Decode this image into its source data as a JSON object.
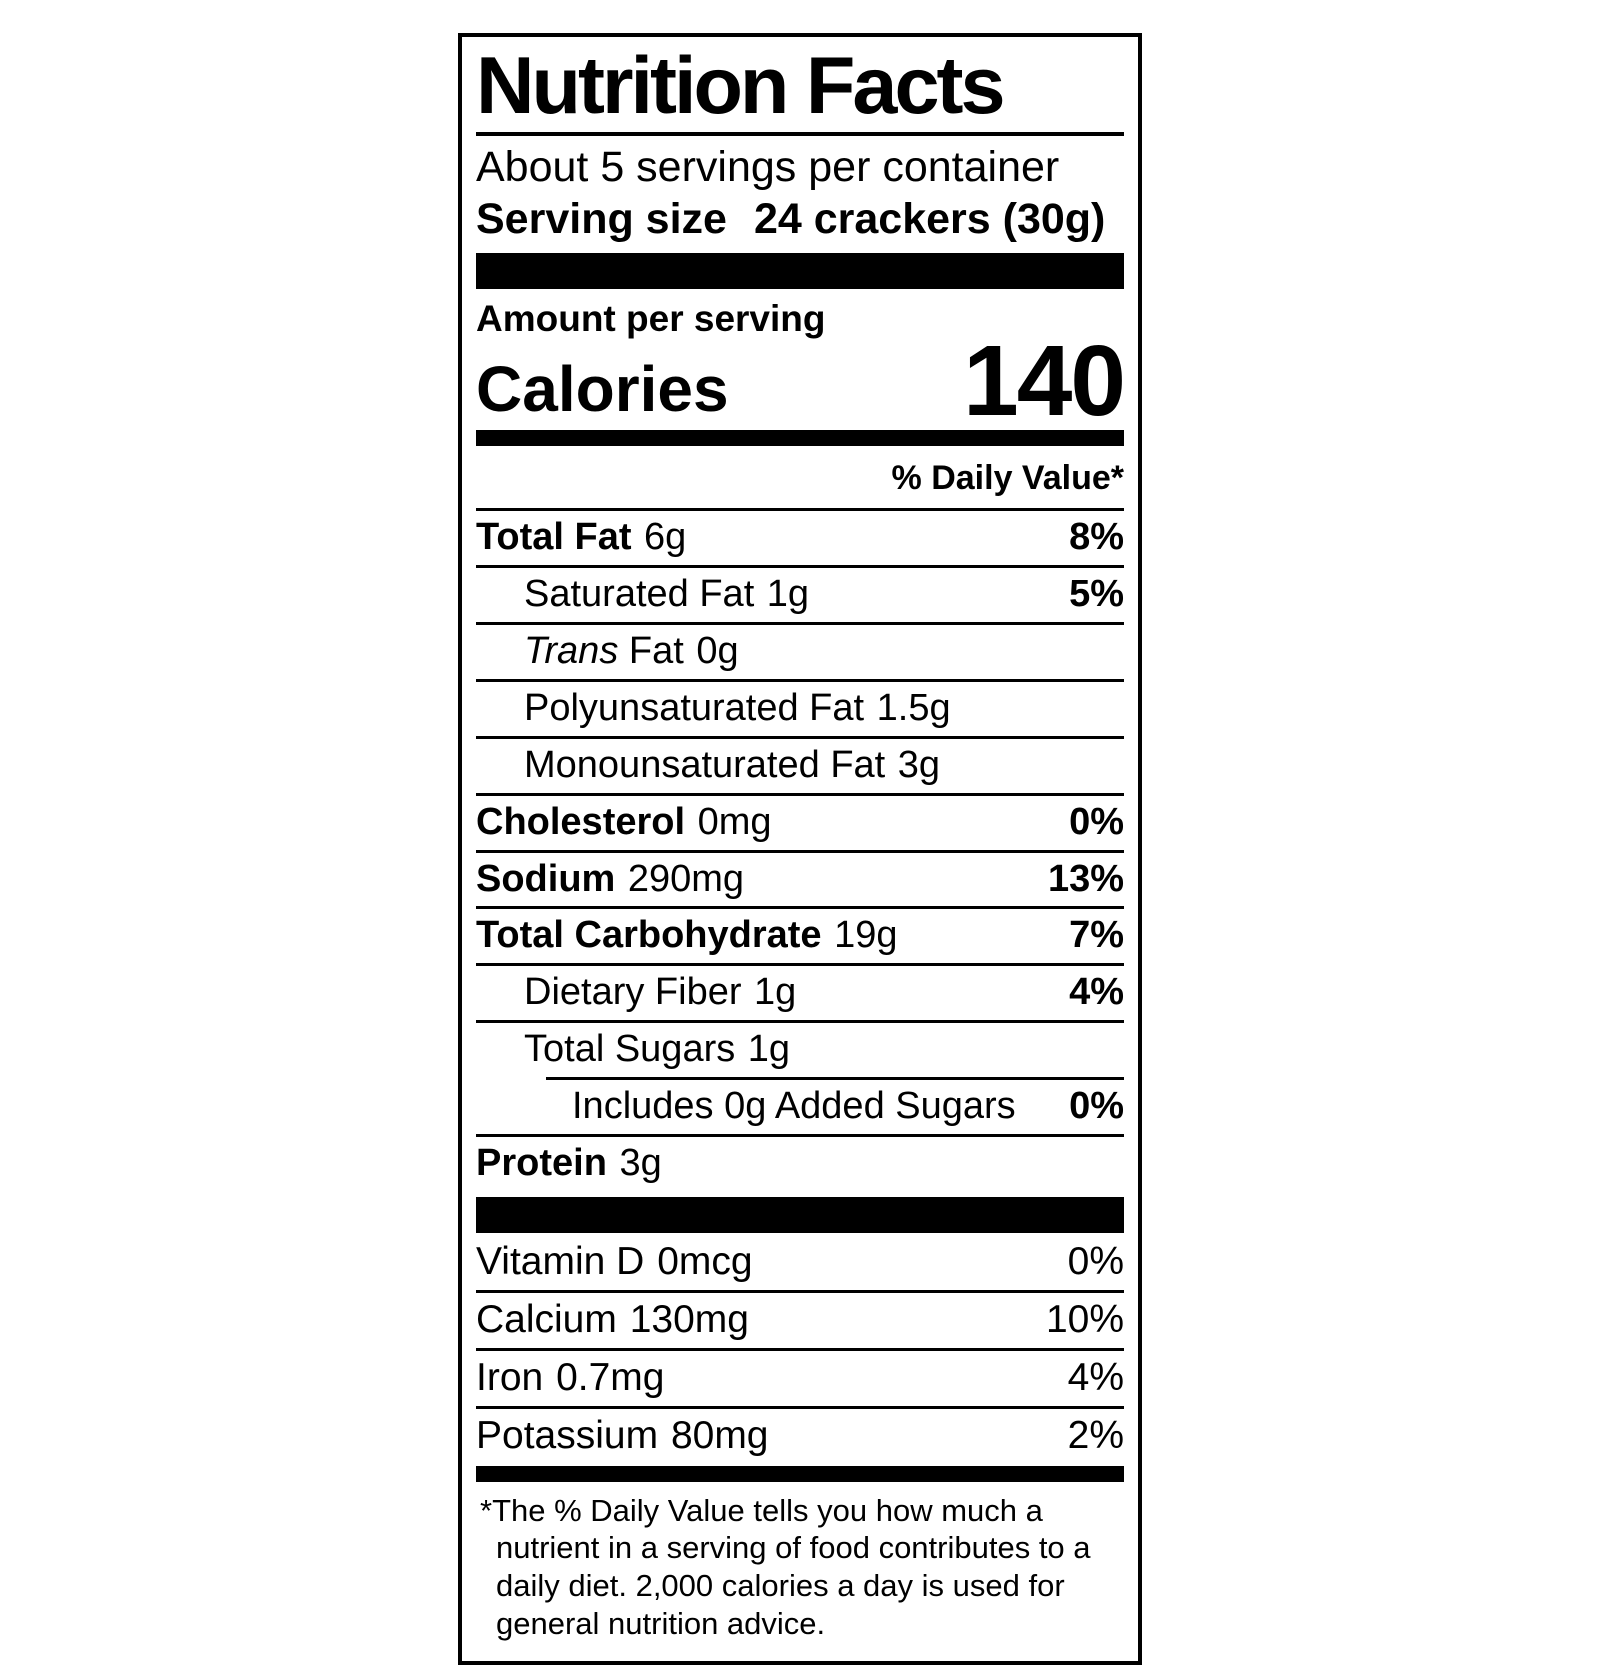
{
  "colors": {
    "ink": "#000000",
    "background": "#ffffff"
  },
  "label": {
    "title": "Nutrition Facts",
    "servings_per_container": "About 5 servings per container",
    "serving_size_label": "Serving size",
    "serving_size_value": "24 crackers (30g)",
    "amount_per_serving": "Amount per serving",
    "calories_label": "Calories",
    "calories_value": "140",
    "daily_value_header": "% Daily Value*",
    "nutrients": [
      {
        "name": "Total Fat",
        "amount": "6g",
        "dv": "8%"
      },
      {
        "name": "Saturated Fat",
        "amount": "1g",
        "dv": "5%"
      },
      {
        "name_italic": "Trans",
        "name": " Fat",
        "amount": "0g",
        "dv": ""
      },
      {
        "name": "Polyunsaturated Fat",
        "amount": "1.5g",
        "dv": ""
      },
      {
        "name": "Monounsaturated Fat",
        "amount": "3g",
        "dv": ""
      },
      {
        "name": "Cholesterol",
        "amount": "0mg",
        "dv": "0%"
      },
      {
        "name": "Sodium",
        "amount": "290mg",
        "dv": "13%"
      },
      {
        "name": "Total Carbohydrate",
        "amount": "19g",
        "dv": "7%"
      },
      {
        "name": "Dietary Fiber",
        "amount": "1g",
        "dv": "4%"
      },
      {
        "name": "Total Sugars",
        "amount": "1g",
        "dv": ""
      },
      {
        "name": "Includes 0g Added Sugars",
        "amount": "",
        "dv": "0%"
      },
      {
        "name": "Protein",
        "amount": "3g",
        "dv": ""
      }
    ],
    "micronutrients": [
      {
        "name": "Vitamin D",
        "amount": "0mcg",
        "dv": "0%"
      },
      {
        "name": "Calcium",
        "amount": "130mg",
        "dv": "10%"
      },
      {
        "name": "Iron",
        "amount": "0.7mg",
        "dv": "4%"
      },
      {
        "name": "Potassium",
        "amount": "80mg",
        "dv": "2%"
      }
    ],
    "footnote": "*The % Daily Value tells you how much a nutrient in a serving of food contributes to a daily diet. 2,000 calories a day is used for general nutrition advice."
  }
}
